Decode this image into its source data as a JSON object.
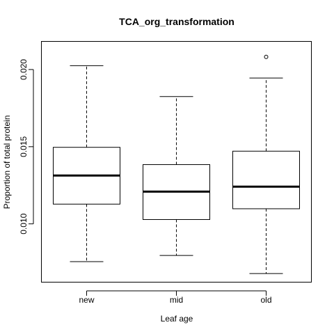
{
  "chart_data": {
    "type": "box",
    "title": "TCA_org_transformation",
    "xlabel": "Leaf age",
    "ylabel": "Proportion of total protein",
    "ylim": [
      0.0062,
      0.0218
    ],
    "y_ticks": [
      0.01,
      0.015,
      0.02
    ],
    "y_tick_labels": [
      "0.010",
      "0.015",
      "0.020"
    ],
    "categories": [
      "new",
      "mid",
      "old"
    ],
    "boxes": [
      {
        "name": "new",
        "whisker_low": 0.00755,
        "q1": 0.01128,
        "median": 0.01313,
        "q3": 0.01496,
        "whisker_high": 0.02025,
        "outliers": []
      },
      {
        "name": "mid",
        "whisker_low": 0.00795,
        "q1": 0.01028,
        "median": 0.01209,
        "q3": 0.01384,
        "whisker_high": 0.01825,
        "outliers": []
      },
      {
        "name": "old",
        "whisker_low": 0.00678,
        "q1": 0.01098,
        "median": 0.01241,
        "q3": 0.01471,
        "whisker_high": 0.01945,
        "outliers": [
          0.02082
        ]
      }
    ],
    "grid": false,
    "legend": "none"
  }
}
